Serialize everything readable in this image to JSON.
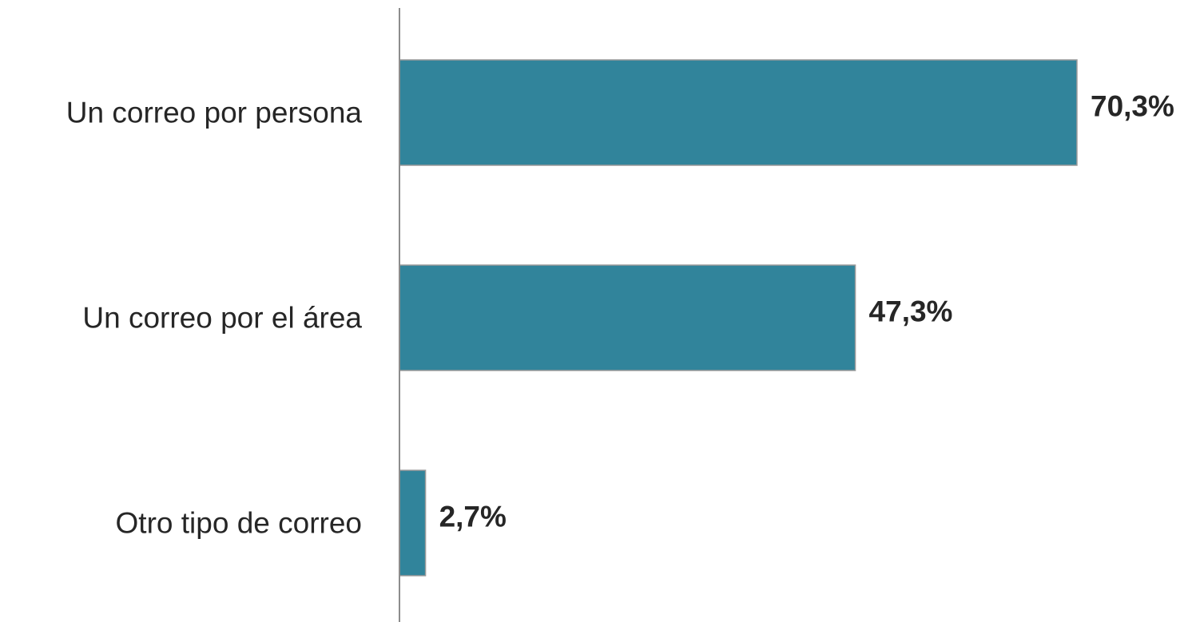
{
  "chart_data": {
    "type": "bar",
    "orientation": "horizontal",
    "categories": [
      "Un correo por persona",
      "Un correo por el área",
      "Otro tipo de correo"
    ],
    "values": [
      70.3,
      47.3,
      2.7
    ],
    "value_labels": [
      "70,3%",
      "47,3%",
      "2,7%"
    ],
    "unit": "%",
    "title": "",
    "xlabel": "",
    "ylabel": "",
    "xlim": [
      0,
      70.3
    ],
    "grid": false,
    "legend": "none",
    "bar_color": "#31849b"
  }
}
